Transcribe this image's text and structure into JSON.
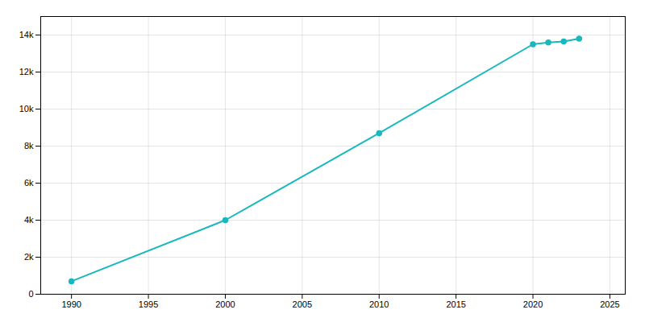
{
  "chart_data": {
    "type": "line",
    "x": [
      1990,
      2000,
      2010,
      2020,
      2021,
      2022,
      2023
    ],
    "values": [
      700,
      4000,
      8700,
      13500,
      13600,
      13650,
      13800
    ],
    "color": "#17b8be",
    "marker": "circle",
    "xlim": [
      1988,
      2026
    ],
    "xticks": [
      1990,
      1995,
      2000,
      2005,
      2010,
      2015,
      2020,
      2025
    ],
    "ylim": [
      0,
      15000
    ],
    "yticks": [
      0,
      {
        "value": 2000,
        "label": "2k"
      },
      {
        "value": 4000,
        "label": "4k"
      },
      {
        "value": 6000,
        "label": "6k"
      },
      {
        "value": 8000,
        "label": "8k"
      },
      {
        "value": 10000,
        "label": "10k"
      },
      {
        "value": 12000,
        "label": "12k"
      },
      {
        "value": 14000,
        "label": "14k"
      }
    ],
    "grid": true
  }
}
